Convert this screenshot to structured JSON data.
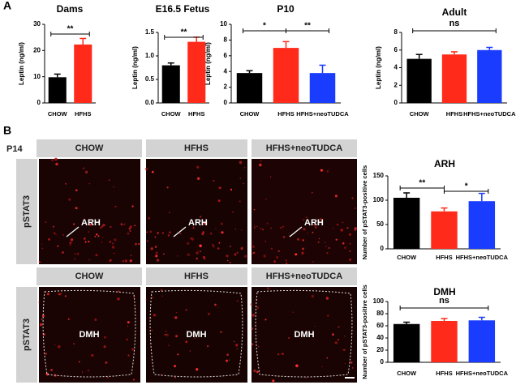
{
  "panel_labels": [
    "A",
    "B"
  ],
  "micrographs": {
    "age": "P14",
    "rows": [
      {
        "stain": "pSTAT3",
        "region": "ARH",
        "columns": [
          "CHOW",
          "HFHS",
          "HFHS+neoTUDCA"
        ]
      },
      {
        "stain": "pSTAT3",
        "region": "DMH",
        "columns": [
          "CHOW",
          "HFHS",
          "HFHS+neoTUDCA"
        ]
      }
    ]
  },
  "chart_data": [
    {
      "type": "bar",
      "title": "Dams",
      "y_label": "Leptin (ng/ml)",
      "categories": [
        "CHOW",
        "HFHS"
      ],
      "values": [
        9.8,
        22.3
      ],
      "errors": [
        1.2,
        2.3
      ],
      "colors": [
        "#000000",
        "#ff2a1a"
      ],
      "ylim": [
        0,
        30
      ],
      "yticks": [
        0,
        10,
        20,
        30
      ],
      "annotations": [
        "**"
      ]
    },
    {
      "type": "bar",
      "title": "E16.5 Fetus",
      "y_label": "Leptin (ng/ml)",
      "categories": [
        "CHOW",
        "HFHS"
      ],
      "values": [
        0.8,
        1.3
      ],
      "errors": [
        0.05,
        0.1
      ],
      "colors": [
        "#000000",
        "#ff2a1a"
      ],
      "ylim": [
        0,
        1.5
      ],
      "yticks": [
        {
          "value": 0,
          "label": "0.0"
        },
        {
          "value": 0.5,
          "label": "0.5"
        },
        {
          "value": 1,
          "label": "1.0"
        },
        {
          "value": 1.5,
          "label": "1.5"
        }
      ],
      "annotations": [
        "**"
      ]
    },
    {
      "type": "bar",
      "title": "P10",
      "y_label": "Leptin (ng/ml)",
      "categories": [
        "CHOW",
        "HFHS",
        "HFHS+neoTUDCA"
      ],
      "values": [
        3.8,
        7.0,
        3.8
      ],
      "errors": [
        0.3,
        0.8,
        1.0
      ],
      "colors": [
        "#000000",
        "#ff2a1a",
        "#1a3cff"
      ],
      "ylim": [
        0,
        10
      ],
      "yticks": [
        0,
        2,
        4,
        6,
        8,
        10
      ],
      "annotations": [
        "*",
        "**"
      ]
    },
    {
      "type": "bar",
      "title": "Adult",
      "y_label": "Leptin (ng/ml)",
      "categories": [
        "CHOW",
        "HFHS",
        "HFHS+neoTUDCA"
      ],
      "values": [
        5.0,
        5.5,
        6.0
      ],
      "errors": [
        0.5,
        0.3,
        0.3
      ],
      "colors": [
        "#000000",
        "#ff2a1a",
        "#1a3cff"
      ],
      "ylim": [
        0,
        8
      ],
      "yticks": [
        0,
        2,
        4,
        6,
        8
      ],
      "annotations": [
        "ns"
      ]
    },
    {
      "type": "bar",
      "title": "ARH",
      "y_label": "Number of pSTAT3-positive cells",
      "categories": [
        "CHOW",
        "HFHS",
        "HFHS+neoTUDCA"
      ],
      "values": [
        105,
        77,
        98
      ],
      "errors": [
        10,
        7,
        16
      ],
      "colors": [
        "#000000",
        "#ff2a1a",
        "#1a3cff"
      ],
      "ylim": [
        0,
        150
      ],
      "yticks": [
        0,
        50,
        100,
        150
      ],
      "annotations": [
        "**",
        "*"
      ]
    },
    {
      "type": "bar",
      "title": "DMH",
      "y_label": "Number of pSTAT3-positive cells",
      "categories": [
        "CHOW",
        "HFHS",
        "HFHS+neoTUDCA"
      ],
      "values": [
        63,
        68,
        69
      ],
      "errors": [
        3,
        4,
        5
      ],
      "colors": [
        "#000000",
        "#ff2a1a",
        "#1a3cff"
      ],
      "ylim": [
        0,
        100
      ],
      "yticks": [
        0,
        20,
        40,
        60,
        80,
        100
      ],
      "annotations": [
        "ns"
      ]
    }
  ]
}
